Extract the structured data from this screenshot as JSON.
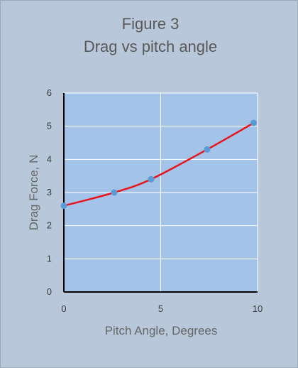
{
  "chart_data": {
    "type": "line",
    "title": "Figure 3",
    "subtitle": "Drag vs pitch angle",
    "xlabel": "Pitch Angle, Degrees",
    "ylabel": "Drag Force, N",
    "xlim": [
      0,
      10
    ],
    "ylim": [
      0,
      6
    ],
    "xticks": [
      "0",
      "5",
      "10"
    ],
    "yticks": [
      "0",
      "1",
      "2",
      "3",
      "4",
      "5",
      "6"
    ],
    "grid": true,
    "legend": "none",
    "series": [
      {
        "x": [
          0,
          2.6,
          4.5,
          7.4,
          9.8
        ],
        "y": [
          2.6,
          3.0,
          3.4,
          4.3,
          5.1
        ],
        "line_color": "#e8141c",
        "marker_color": "#5b9bd5"
      }
    ],
    "plot_background": "#a4c3e8",
    "frame_background": "#b8c8da"
  }
}
